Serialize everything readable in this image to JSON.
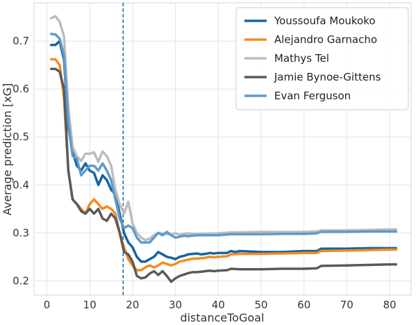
{
  "chart_data": {
    "type": "line",
    "title": "",
    "xlabel": "distanceToGoal",
    "ylabel": "Average prediction [xG]",
    "xlim": [
      -3,
      85
    ],
    "ylim": [
      0.17,
      0.78
    ],
    "xticks": [
      0,
      10,
      20,
      30,
      40,
      50,
      60,
      70,
      80
    ],
    "yticks": [
      0.2,
      0.3,
      0.4,
      0.5,
      0.6,
      0.7
    ],
    "ytick_labels": [
      "0.2",
      "0.3",
      "0.4",
      "0.5",
      "0.6",
      "0.7"
    ],
    "grid": true,
    "legend_position": "top-right",
    "vline": {
      "x": 17.8,
      "color": "#1f6f9a",
      "style": "dashed"
    },
    "series": [
      {
        "name": "Youssoufa Moukoko",
        "color": "#1664a0",
        "points": [
          [
            1,
            0.692
          ],
          [
            2,
            0.692
          ],
          [
            3,
            0.7
          ],
          [
            4,
            0.66
          ],
          [
            5,
            0.52
          ],
          [
            6,
            0.47
          ],
          [
            7,
            0.44
          ],
          [
            8,
            0.43
          ],
          [
            9,
            0.445
          ],
          [
            10,
            0.43
          ],
          [
            11,
            0.425
          ],
          [
            12,
            0.4
          ],
          [
            13,
            0.42
          ],
          [
            14,
            0.41
          ],
          [
            15,
            0.39
          ],
          [
            16,
            0.38
          ],
          [
            17,
            0.34
          ],
          [
            18,
            0.3
          ],
          [
            19,
            0.28
          ],
          [
            20,
            0.27
          ],
          [
            21,
            0.25
          ],
          [
            22,
            0.24
          ],
          [
            23,
            0.24
          ],
          [
            24,
            0.245
          ],
          [
            25,
            0.25
          ],
          [
            26,
            0.26
          ],
          [
            27,
            0.255
          ],
          [
            28,
            0.25
          ],
          [
            29,
            0.248
          ],
          [
            30,
            0.245
          ],
          [
            31,
            0.25
          ],
          [
            32,
            0.252
          ],
          [
            33,
            0.255
          ],
          [
            34,
            0.256
          ],
          [
            35,
            0.257
          ],
          [
            36,
            0.255
          ],
          [
            37,
            0.256
          ],
          [
            38,
            0.258
          ],
          [
            39,
            0.257
          ],
          [
            40,
            0.258
          ],
          [
            42,
            0.258
          ],
          [
            43,
            0.262
          ],
          [
            44,
            0.26
          ],
          [
            45,
            0.262
          ],
          [
            50,
            0.26
          ],
          [
            55,
            0.26
          ],
          [
            60,
            0.262
          ],
          [
            63,
            0.262
          ],
          [
            64,
            0.267
          ],
          [
            70,
            0.267
          ],
          [
            75,
            0.268
          ],
          [
            80,
            0.268
          ],
          [
            81.5,
            0.268
          ]
        ]
      },
      {
        "name": "Alejandro Garnacho",
        "color": "#f58b1f",
        "points": [
          [
            1,
            0.662
          ],
          [
            2,
            0.662
          ],
          [
            3,
            0.65
          ],
          [
            4,
            0.58
          ],
          [
            5,
            0.43
          ],
          [
            6,
            0.37
          ],
          [
            7,
            0.36
          ],
          [
            8,
            0.35
          ],
          [
            9,
            0.34
          ],
          [
            10,
            0.36
          ],
          [
            11,
            0.37
          ],
          [
            12,
            0.36
          ],
          [
            13,
            0.35
          ],
          [
            14,
            0.355
          ],
          [
            15,
            0.35
          ],
          [
            16,
            0.34
          ],
          [
            17,
            0.3
          ],
          [
            18,
            0.27
          ],
          [
            19,
            0.245
          ],
          [
            20,
            0.232
          ],
          [
            21,
            0.222
          ],
          [
            22,
            0.222
          ],
          [
            23,
            0.228
          ],
          [
            24,
            0.232
          ],
          [
            25,
            0.228
          ],
          [
            26,
            0.232
          ],
          [
            27,
            0.238
          ],
          [
            28,
            0.235
          ],
          [
            29,
            0.232
          ],
          [
            30,
            0.235
          ],
          [
            31,
            0.24
          ],
          [
            32,
            0.242
          ],
          [
            33,
            0.244
          ],
          [
            34,
            0.246
          ],
          [
            35,
            0.246
          ],
          [
            36,
            0.247
          ],
          [
            37,
            0.248
          ],
          [
            38,
            0.25
          ],
          [
            39,
            0.249
          ],
          [
            40,
            0.25
          ],
          [
            42,
            0.251
          ],
          [
            43,
            0.255
          ],
          [
            45,
            0.256
          ],
          [
            50,
            0.256
          ],
          [
            55,
            0.257
          ],
          [
            60,
            0.258
          ],
          [
            63,
            0.258
          ],
          [
            64,
            0.262
          ],
          [
            70,
            0.263
          ],
          [
            75,
            0.264
          ],
          [
            80,
            0.265
          ],
          [
            81.5,
            0.265
          ]
        ]
      },
      {
        "name": "Mathys Tel",
        "color": "#bdbdbd",
        "points": [
          [
            1,
            0.748
          ],
          [
            2,
            0.752
          ],
          [
            3,
            0.74
          ],
          [
            4,
            0.71
          ],
          [
            5,
            0.56
          ],
          [
            6,
            0.48
          ],
          [
            7,
            0.46
          ],
          [
            8,
            0.45
          ],
          [
            9,
            0.465
          ],
          [
            10,
            0.465
          ],
          [
            11,
            0.468
          ],
          [
            12,
            0.448
          ],
          [
            13,
            0.47
          ],
          [
            14,
            0.46
          ],
          [
            15,
            0.44
          ],
          [
            16,
            0.39
          ],
          [
            17,
            0.36
          ],
          [
            18,
            0.34
          ],
          [
            19,
            0.365
          ],
          [
            20,
            0.32
          ],
          [
            21,
            0.3
          ],
          [
            22,
            0.29
          ],
          [
            23,
            0.285
          ],
          [
            24,
            0.288
          ],
          [
            25,
            0.295
          ],
          [
            26,
            0.3
          ],
          [
            27,
            0.298
          ],
          [
            28,
            0.298
          ],
          [
            29,
            0.297
          ],
          [
            30,
            0.299
          ],
          [
            31,
            0.296
          ],
          [
            32,
            0.298
          ],
          [
            33,
            0.299
          ],
          [
            34,
            0.298
          ],
          [
            35,
            0.298
          ],
          [
            40,
            0.299
          ],
          [
            43,
            0.301
          ],
          [
            45,
            0.301
          ],
          [
            50,
            0.302
          ],
          [
            55,
            0.302
          ],
          [
            60,
            0.302
          ],
          [
            63,
            0.303
          ],
          [
            64,
            0.305
          ],
          [
            70,
            0.305
          ],
          [
            75,
            0.306
          ],
          [
            80,
            0.307
          ],
          [
            81.5,
            0.307
          ]
        ]
      },
      {
        "name": "Jamie Bynoe-Gittens",
        "color": "#5a5a5a",
        "points": [
          [
            1,
            0.642
          ],
          [
            2,
            0.642
          ],
          [
            3,
            0.636
          ],
          [
            4,
            0.6
          ],
          [
            5,
            0.43
          ],
          [
            6,
            0.37
          ],
          [
            7,
            0.36
          ],
          [
            8,
            0.345
          ],
          [
            9,
            0.34
          ],
          [
            10,
            0.35
          ],
          [
            11,
            0.34
          ],
          [
            12,
            0.35
          ],
          [
            13,
            0.33
          ],
          [
            14,
            0.325
          ],
          [
            15,
            0.34
          ],
          [
            16,
            0.33
          ],
          [
            17,
            0.3
          ],
          [
            18,
            0.26
          ],
          [
            19,
            0.255
          ],
          [
            20,
            0.24
          ],
          [
            21,
            0.21
          ],
          [
            22,
            0.205
          ],
          [
            23,
            0.207
          ],
          [
            24,
            0.215
          ],
          [
            25,
            0.22
          ],
          [
            26,
            0.212
          ],
          [
            27,
            0.22
          ],
          [
            28,
            0.21
          ],
          [
            29,
            0.198
          ],
          [
            30,
            0.205
          ],
          [
            31,
            0.21
          ],
          [
            32,
            0.213
          ],
          [
            33,
            0.216
          ],
          [
            34,
            0.218
          ],
          [
            35,
            0.218
          ],
          [
            36,
            0.219
          ],
          [
            37,
            0.22
          ],
          [
            38,
            0.221
          ],
          [
            39,
            0.22
          ],
          [
            40,
            0.221
          ],
          [
            42,
            0.222
          ],
          [
            43,
            0.225
          ],
          [
            45,
            0.224
          ],
          [
            50,
            0.224
          ],
          [
            55,
            0.225
          ],
          [
            60,
            0.225
          ],
          [
            63,
            0.226
          ],
          [
            64,
            0.231
          ],
          [
            70,
            0.232
          ],
          [
            75,
            0.233
          ],
          [
            80,
            0.234
          ],
          [
            81.5,
            0.234
          ]
        ]
      },
      {
        "name": "Evan Ferguson",
        "color": "#5b9bd0",
        "points": [
          [
            1,
            0.715
          ],
          [
            2,
            0.714
          ],
          [
            3,
            0.705
          ],
          [
            4,
            0.67
          ],
          [
            5,
            0.53
          ],
          [
            6,
            0.46
          ],
          [
            7,
            0.455
          ],
          [
            8,
            0.42
          ],
          [
            9,
            0.43
          ],
          [
            10,
            0.44
          ],
          [
            11,
            0.44
          ],
          [
            12,
            0.43
          ],
          [
            13,
            0.445
          ],
          [
            14,
            0.43
          ],
          [
            15,
            0.41
          ],
          [
            16,
            0.37
          ],
          [
            17,
            0.33
          ],
          [
            18,
            0.31
          ],
          [
            19,
            0.315
          ],
          [
            20,
            0.31
          ],
          [
            21,
            0.29
          ],
          [
            22,
            0.28
          ],
          [
            23,
            0.28
          ],
          [
            24,
            0.28
          ],
          [
            25,
            0.29
          ],
          [
            26,
            0.3
          ],
          [
            27,
            0.295
          ],
          [
            28,
            0.302
          ],
          [
            29,
            0.295
          ],
          [
            30,
            0.29
          ],
          [
            31,
            0.292
          ],
          [
            32,
            0.294
          ],
          [
            33,
            0.293
          ],
          [
            34,
            0.294
          ],
          [
            35,
            0.295
          ],
          [
            40,
            0.295
          ],
          [
            43,
            0.297
          ],
          [
            45,
            0.297
          ],
          [
            50,
            0.297
          ],
          [
            55,
            0.298
          ],
          [
            60,
            0.298
          ],
          [
            63,
            0.299
          ],
          [
            64,
            0.302
          ],
          [
            70,
            0.302
          ],
          [
            75,
            0.303
          ],
          [
            80,
            0.303
          ],
          [
            81.5,
            0.303
          ]
        ]
      }
    ]
  }
}
